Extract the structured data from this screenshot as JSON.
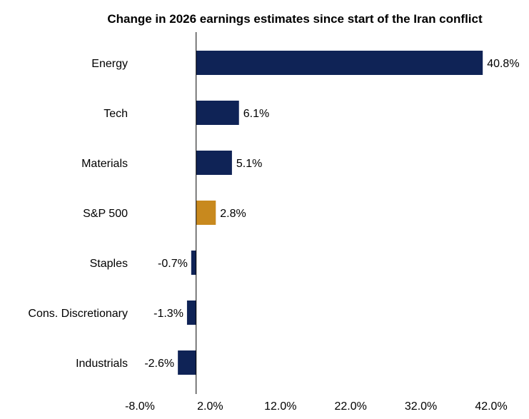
{
  "chart_data": {
    "type": "bar",
    "orientation": "horizontal",
    "title": "Change in 2026 earnings estimates since start of the Iran conflict",
    "categories": [
      "Energy",
      "Tech",
      "Materials",
      "S&P 500",
      "Staples",
      "Cons. Discretionary",
      "Industrials"
    ],
    "values": [
      40.8,
      6.1,
      5.1,
      2.8,
      -0.7,
      -1.3,
      -2.6
    ],
    "data_labels": [
      "40.8%",
      "6.1%",
      "5.1%",
      "2.8%",
      "-0.7%",
      "-1.3%",
      "-2.6%"
    ],
    "highlight_category": "S&P 500",
    "xlim": [
      -8.0,
      42.0
    ],
    "x_ticks": [
      -8.0,
      2.0,
      12.0,
      22.0,
      32.0,
      42.0
    ],
    "x_tick_labels": [
      "-8.0%",
      "2.0%",
      "12.0%",
      "22.0%",
      "32.0%",
      "42.0%"
    ],
    "xlabel": "",
    "ylabel": "",
    "grid": false,
    "legend": "none",
    "colors": {
      "bar": "#0f2356",
      "highlight": "#c8891e",
      "axis": "#000000",
      "text": "#000000"
    }
  }
}
